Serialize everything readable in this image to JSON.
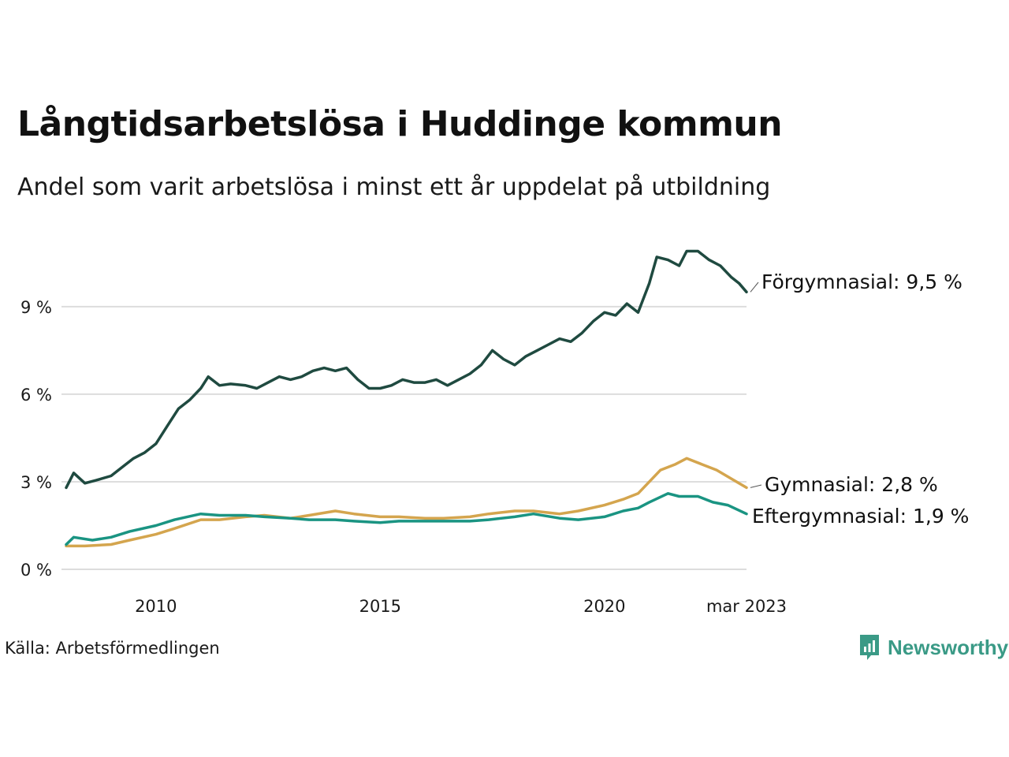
{
  "header": {
    "title": "Långtidsarbetslösa i Huddinge kommun",
    "subtitle": "Andel som varit arbetslösa i minst ett år uppdelat på utbildning"
  },
  "footer": {
    "source": "Källa: Arbetsförmedlingen",
    "brand": "Newsworthy"
  },
  "colors": {
    "Förgymnasial": "#1f4a40",
    "Gymnasial": "#d4a54e",
    "Eftergymnasial": "#1a9482",
    "grid": "#dddddd",
    "brand": "#3a9a86"
  },
  "chart_data": {
    "type": "line",
    "title": "Långtidsarbetslösa i Huddinge kommun",
    "subtitle": "Andel som varit arbetslösa i minst ett år uppdelat på utbildning",
    "xlabel": "",
    "ylabel": "",
    "ylim": [
      0,
      11.4
    ],
    "xlim": [
      "2008-01",
      "2023-03"
    ],
    "yticks": [
      {
        "value": 0,
        "label": "0 %"
      },
      {
        "value": 3,
        "label": "3 %"
      },
      {
        "value": 6,
        "label": "6 %"
      },
      {
        "value": 9,
        "label": "9 %"
      }
    ],
    "xticks": [
      {
        "value": "2010-01",
        "label": "2010"
      },
      {
        "value": "2015-01",
        "label": "2015"
      },
      {
        "value": "2020-01",
        "label": "2020"
      },
      {
        "value": "2023-03",
        "label": "mar 2023"
      }
    ],
    "grid": true,
    "legend": "end-of-line labels",
    "series": [
      {
        "name": "Förgymnasial",
        "end_label": "Förgymnasial: 9,5 %",
        "points": [
          [
            "2008-01",
            2.8
          ],
          [
            "2008-03",
            3.3
          ],
          [
            "2008-06",
            2.95
          ],
          [
            "2008-09",
            3.05
          ],
          [
            "2009-01",
            3.2
          ],
          [
            "2009-04",
            3.5
          ],
          [
            "2009-07",
            3.8
          ],
          [
            "2009-10",
            4.0
          ],
          [
            "2010-01",
            4.3
          ],
          [
            "2010-04",
            4.9
          ],
          [
            "2010-07",
            5.5
          ],
          [
            "2010-10",
            5.8
          ],
          [
            "2011-01",
            6.2
          ],
          [
            "2011-03",
            6.6
          ],
          [
            "2011-06",
            6.3
          ],
          [
            "2011-09",
            6.35
          ],
          [
            "2012-01",
            6.3
          ],
          [
            "2012-04",
            6.2
          ],
          [
            "2012-07",
            6.4
          ],
          [
            "2012-10",
            6.6
          ],
          [
            "2013-01",
            6.5
          ],
          [
            "2013-04",
            6.6
          ],
          [
            "2013-07",
            6.8
          ],
          [
            "2013-10",
            6.9
          ],
          [
            "2014-01",
            6.8
          ],
          [
            "2014-04",
            6.9
          ],
          [
            "2014-07",
            6.5
          ],
          [
            "2014-10",
            6.2
          ],
          [
            "2015-01",
            6.2
          ],
          [
            "2015-04",
            6.3
          ],
          [
            "2015-07",
            6.5
          ],
          [
            "2015-10",
            6.4
          ],
          [
            "2016-01",
            6.4
          ],
          [
            "2016-04",
            6.5
          ],
          [
            "2016-07",
            6.3
          ],
          [
            "2016-10",
            6.5
          ],
          [
            "2017-01",
            6.7
          ],
          [
            "2017-04",
            7.0
          ],
          [
            "2017-07",
            7.5
          ],
          [
            "2017-10",
            7.2
          ],
          [
            "2018-01",
            7.0
          ],
          [
            "2018-04",
            7.3
          ],
          [
            "2018-07",
            7.5
          ],
          [
            "2018-10",
            7.7
          ],
          [
            "2019-01",
            7.9
          ],
          [
            "2019-04",
            7.8
          ],
          [
            "2019-07",
            8.1
          ],
          [
            "2019-10",
            8.5
          ],
          [
            "2020-01",
            8.8
          ],
          [
            "2020-04",
            8.7
          ],
          [
            "2020-07",
            9.1
          ],
          [
            "2020-10",
            8.8
          ],
          [
            "2021-01",
            9.8
          ],
          [
            "2021-03",
            10.7
          ],
          [
            "2021-06",
            10.6
          ],
          [
            "2021-09",
            10.4
          ],
          [
            "2021-11",
            10.9
          ],
          [
            "2022-02",
            10.9
          ],
          [
            "2022-05",
            10.6
          ],
          [
            "2022-08",
            10.4
          ],
          [
            "2022-11",
            10.0
          ],
          [
            "2023-01",
            9.8
          ],
          [
            "2023-03",
            9.5
          ]
        ]
      },
      {
        "name": "Gymnasial",
        "end_label": "Gymnasial: 2,8 %",
        "points": [
          [
            "2008-01",
            0.8
          ],
          [
            "2008-06",
            0.8
          ],
          [
            "2009-01",
            0.85
          ],
          [
            "2009-06",
            1.0
          ],
          [
            "2010-01",
            1.2
          ],
          [
            "2010-06",
            1.4
          ],
          [
            "2011-01",
            1.7
          ],
          [
            "2011-06",
            1.7
          ],
          [
            "2012-01",
            1.8
          ],
          [
            "2012-06",
            1.85
          ],
          [
            "2013-01",
            1.75
          ],
          [
            "2013-06",
            1.85
          ],
          [
            "2014-01",
            2.0
          ],
          [
            "2014-06",
            1.9
          ],
          [
            "2015-01",
            1.8
          ],
          [
            "2015-06",
            1.8
          ],
          [
            "2016-01",
            1.75
          ],
          [
            "2016-06",
            1.75
          ],
          [
            "2017-01",
            1.8
          ],
          [
            "2017-06",
            1.9
          ],
          [
            "2018-01",
            2.0
          ],
          [
            "2018-06",
            2.0
          ],
          [
            "2019-01",
            1.9
          ],
          [
            "2019-06",
            2.0
          ],
          [
            "2020-01",
            2.2
          ],
          [
            "2020-06",
            2.4
          ],
          [
            "2020-10",
            2.6
          ],
          [
            "2021-01",
            3.0
          ],
          [
            "2021-04",
            3.4
          ],
          [
            "2021-08",
            3.6
          ],
          [
            "2021-11",
            3.8
          ],
          [
            "2022-03",
            3.6
          ],
          [
            "2022-07",
            3.4
          ],
          [
            "2022-11",
            3.1
          ],
          [
            "2023-03",
            2.8
          ]
        ]
      },
      {
        "name": "Eftergymnasial",
        "end_label": "Eftergymnasial: 1,9 %",
        "points": [
          [
            "2008-01",
            0.85
          ],
          [
            "2008-03",
            1.1
          ],
          [
            "2008-08",
            1.0
          ],
          [
            "2009-01",
            1.1
          ],
          [
            "2009-06",
            1.3
          ],
          [
            "2010-01",
            1.5
          ],
          [
            "2010-06",
            1.7
          ],
          [
            "2011-01",
            1.9
          ],
          [
            "2011-06",
            1.85
          ],
          [
            "2012-01",
            1.85
          ],
          [
            "2012-06",
            1.8
          ],
          [
            "2013-01",
            1.75
          ],
          [
            "2013-06",
            1.7
          ],
          [
            "2014-01",
            1.7
          ],
          [
            "2014-06",
            1.65
          ],
          [
            "2015-01",
            1.6
          ],
          [
            "2015-06",
            1.65
          ],
          [
            "2016-01",
            1.65
          ],
          [
            "2016-06",
            1.65
          ],
          [
            "2017-01",
            1.65
          ],
          [
            "2017-06",
            1.7
          ],
          [
            "2018-01",
            1.8
          ],
          [
            "2018-06",
            1.9
          ],
          [
            "2019-01",
            1.75
          ],
          [
            "2019-06",
            1.7
          ],
          [
            "2020-01",
            1.8
          ],
          [
            "2020-06",
            2.0
          ],
          [
            "2020-10",
            2.1
          ],
          [
            "2021-01",
            2.3
          ],
          [
            "2021-06",
            2.6
          ],
          [
            "2021-09",
            2.5
          ],
          [
            "2022-02",
            2.5
          ],
          [
            "2022-06",
            2.3
          ],
          [
            "2022-10",
            2.2
          ],
          [
            "2023-03",
            1.9
          ]
        ]
      }
    ]
  }
}
